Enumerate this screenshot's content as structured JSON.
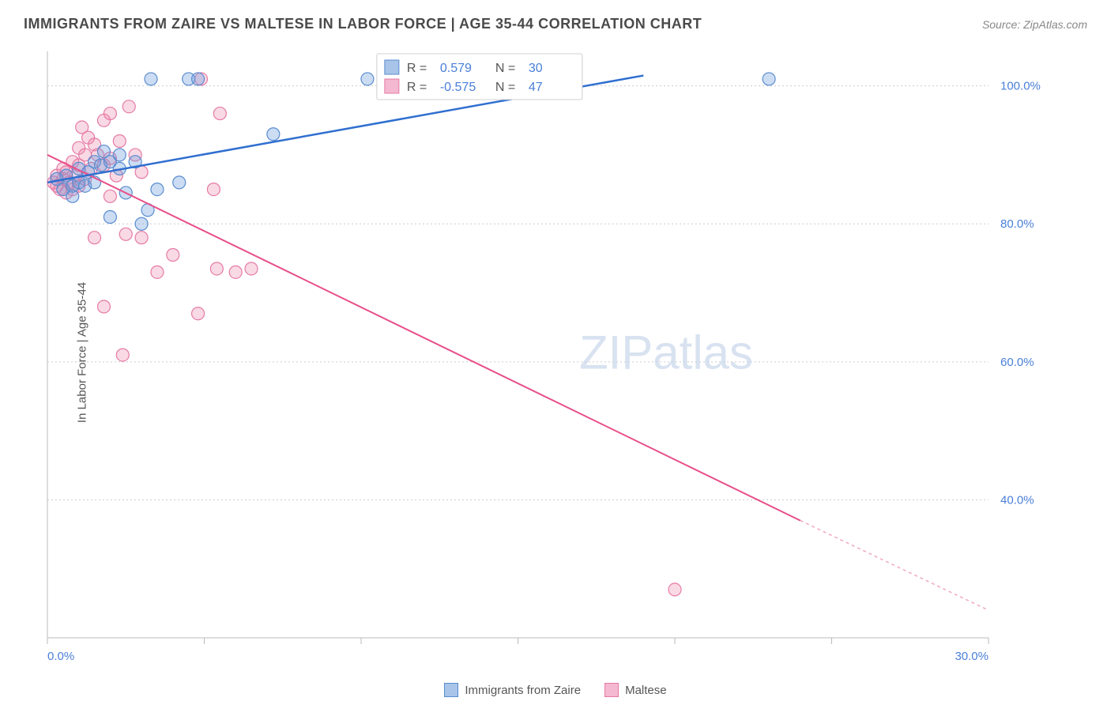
{
  "header": {
    "title": "IMMIGRANTS FROM ZAIRE VS MALTESE IN LABOR FORCE | AGE 35-44 CORRELATION CHART",
    "source": "Source: ZipAtlas.com"
  },
  "y_axis_label": "In Labor Force | Age 35-44",
  "watermark": "ZIPatlas",
  "chart": {
    "type": "scatter-with-trendlines",
    "background_color": "#ffffff",
    "grid_color": "#cccccc",
    "axis_color": "#bbbbbb",
    "xlim": [
      0,
      30
    ],
    "ylim": [
      20,
      105
    ],
    "x_ticks": [
      0,
      5,
      10,
      15,
      20,
      25,
      30
    ],
    "x_tick_labels": [
      "0.0%",
      "",
      "",
      "",
      "",
      "",
      "30.0%"
    ],
    "y_ticks": [
      40,
      60,
      80,
      100
    ],
    "y_tick_labels": [
      "40.0%",
      "60.0%",
      "80.0%",
      "100.0%"
    ],
    "marker_radius": 8,
    "marker_opacity": 0.35,
    "legend_top": {
      "R_label": "R =",
      "N_label": "N =",
      "series1_R": "0.579",
      "series1_N": "30",
      "series2_R": "-0.575",
      "series2_N": "47"
    },
    "series": [
      {
        "name": "Immigrants from Zaire",
        "color_fill": "#a8c4e8",
        "color_stroke": "#5a8cd0",
        "trend_color": "#2f6fd0",
        "trend_width": 2.5,
        "trend": {
          "x1": 0,
          "y1": 86,
          "x2": 19,
          "y2": 101.5
        },
        "points": [
          [
            0.3,
            86.5
          ],
          [
            0.5,
            85
          ],
          [
            0.6,
            87
          ],
          [
            0.8,
            85.5
          ],
          [
            0.8,
            84
          ],
          [
            1.0,
            86
          ],
          [
            1.0,
            88
          ],
          [
            1.2,
            85.5
          ],
          [
            1.3,
            87.5
          ],
          [
            1.5,
            89
          ],
          [
            1.5,
            86
          ],
          [
            1.7,
            88.5
          ],
          [
            1.8,
            90.5
          ],
          [
            2.0,
            89
          ],
          [
            2.0,
            81
          ],
          [
            2.3,
            88
          ],
          [
            2.3,
            90
          ],
          [
            2.5,
            84.5
          ],
          [
            2.8,
            89
          ],
          [
            3.0,
            80
          ],
          [
            3.2,
            82
          ],
          [
            3.3,
            101
          ],
          [
            3.5,
            85
          ],
          [
            4.2,
            86
          ],
          [
            4.5,
            101
          ],
          [
            4.8,
            101
          ],
          [
            7.2,
            93
          ],
          [
            10.2,
            101
          ],
          [
            10.8,
            101
          ],
          [
            23.0,
            101
          ]
        ]
      },
      {
        "name": "Maltese",
        "color_fill": "#f4b8d0",
        "color_stroke": "#e67aa5",
        "trend_color": "#e84f8a",
        "trend_width": 2,
        "trend": {
          "x1": 0,
          "y1": 90,
          "x2": 24,
          "y2": 37
        },
        "trend_extrapolate": {
          "x1": 24,
          "y1": 37,
          "x2": 30,
          "y2": 24
        },
        "points": [
          [
            0.2,
            86
          ],
          [
            0.3,
            85.5
          ],
          [
            0.3,
            87
          ],
          [
            0.4,
            85
          ],
          [
            0.5,
            86.5
          ],
          [
            0.5,
            88
          ],
          [
            0.6,
            84.5
          ],
          [
            0.6,
            87.5
          ],
          [
            0.7,
            86
          ],
          [
            0.8,
            89
          ],
          [
            0.8,
            85
          ],
          [
            0.9,
            87
          ],
          [
            1.0,
            88.5
          ],
          [
            1.0,
            91
          ],
          [
            1.0,
            85.5
          ],
          [
            1.1,
            94
          ],
          [
            1.2,
            90
          ],
          [
            1.2,
            86.5
          ],
          [
            1.3,
            92.5
          ],
          [
            1.4,
            88
          ],
          [
            1.5,
            91.5
          ],
          [
            1.5,
            78
          ],
          [
            1.6,
            90
          ],
          [
            1.8,
            95
          ],
          [
            1.8,
            88.5
          ],
          [
            1.8,
            68
          ],
          [
            2.0,
            96
          ],
          [
            2.0,
            89.5
          ],
          [
            2.0,
            84
          ],
          [
            2.2,
            87
          ],
          [
            2.3,
            92
          ],
          [
            2.4,
            61
          ],
          [
            2.5,
            78.5
          ],
          [
            2.6,
            97
          ],
          [
            2.8,
            90
          ],
          [
            3.0,
            87.5
          ],
          [
            3.0,
            78
          ],
          [
            3.5,
            73
          ],
          [
            4.0,
            75.5
          ],
          [
            4.8,
            67
          ],
          [
            4.9,
            101
          ],
          [
            5.3,
            85
          ],
          [
            5.4,
            73.5
          ],
          [
            5.5,
            96
          ],
          [
            6.0,
            73
          ],
          [
            6.5,
            73.5
          ],
          [
            20.0,
            27
          ]
        ]
      }
    ]
  },
  "bottom_legend": {
    "item1_label": "Immigrants from Zaire",
    "item2_label": "Maltese"
  }
}
